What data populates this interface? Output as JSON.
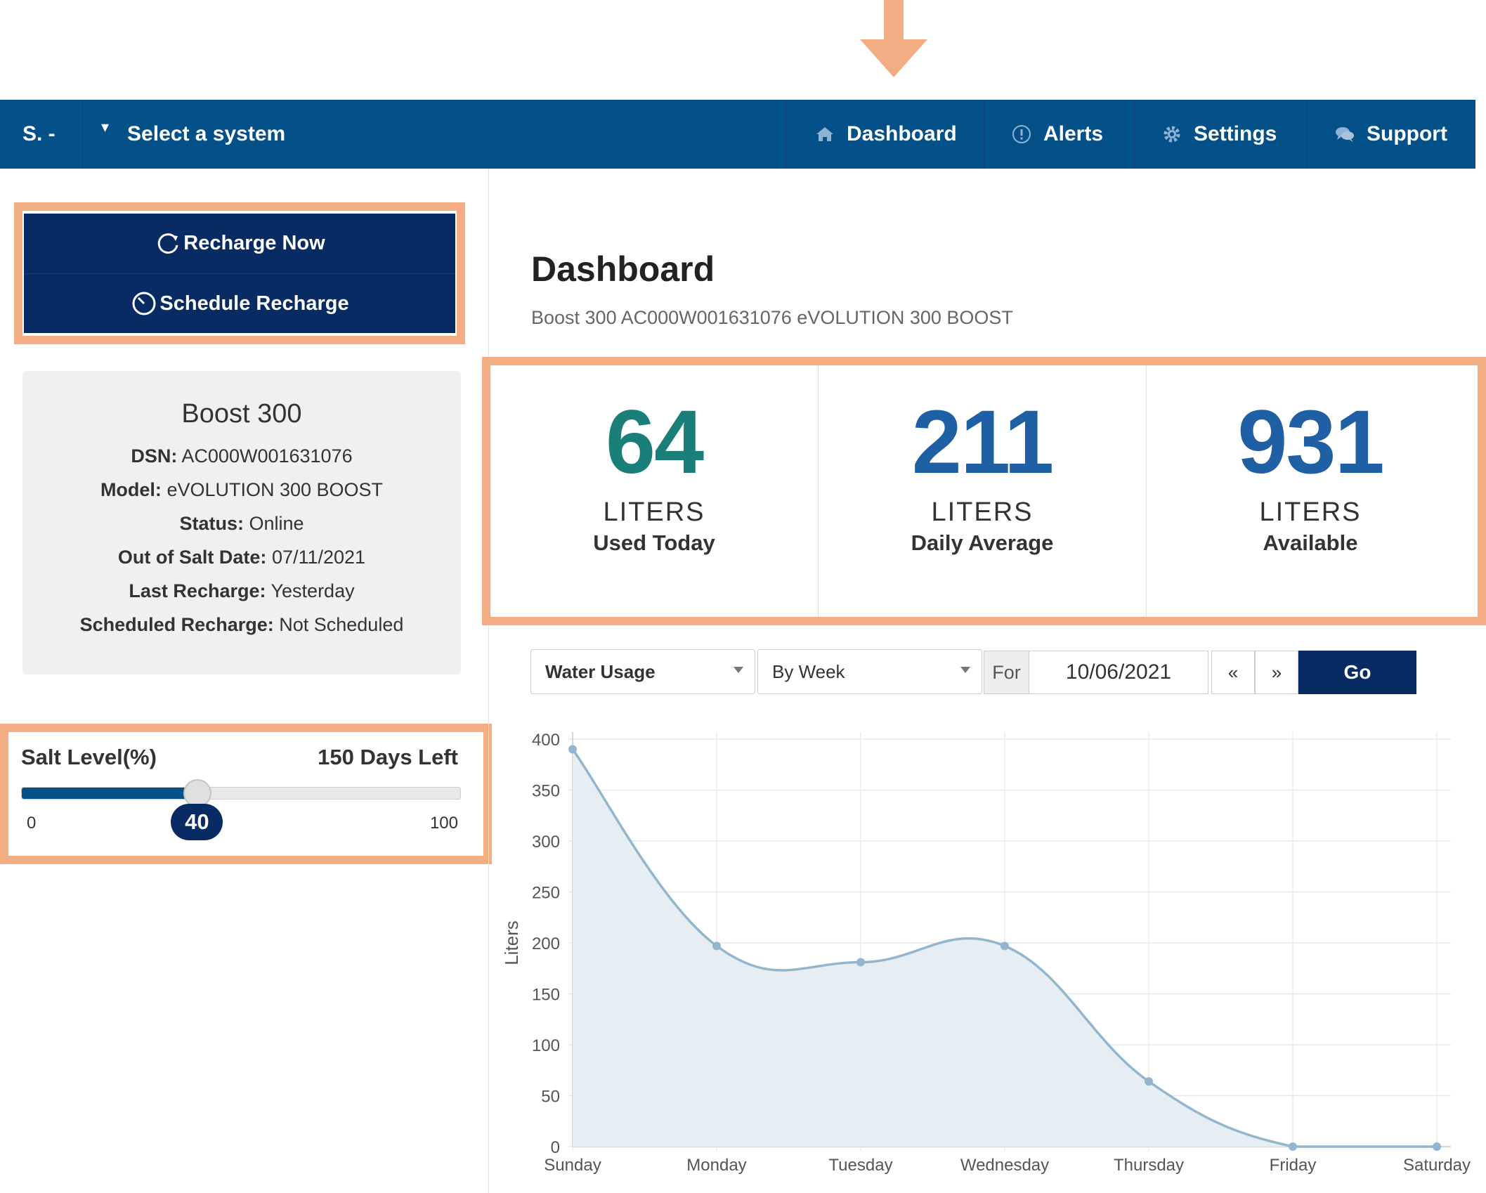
{
  "navbar": {
    "brand": "S. -",
    "system_select": "Select a system",
    "items": [
      {
        "label": "Dashboard",
        "icon": "home-icon"
      },
      {
        "label": "Alerts",
        "icon": "alert-circle-icon"
      },
      {
        "label": "Settings",
        "icon": "gear-icon"
      },
      {
        "label": "Support",
        "icon": "chat-bubbles-icon"
      }
    ]
  },
  "actions": {
    "recharge_now": "Recharge Now",
    "schedule_recharge": "Schedule Recharge"
  },
  "system_info": {
    "title": "Boost 300",
    "dsn_label": "DSN:",
    "dsn": "AC000W001631076",
    "model_label": "Model:",
    "model": "eVOLUTION 300 BOOST",
    "status_label": "Status:",
    "status": "Online",
    "out_of_salt_label": "Out of Salt Date:",
    "out_of_salt": "07/11/2021",
    "last_recharge_label": "Last Recharge:",
    "last_recharge": "Yesterday",
    "scheduled_recharge_label": "Scheduled Recharge:",
    "scheduled_recharge": "Not Scheduled"
  },
  "salt": {
    "label": "Salt Level(%)",
    "days_left": "150 Days Left",
    "min": "0",
    "max": "100",
    "value": 40,
    "value_text": "40"
  },
  "page": {
    "title": "Dashboard",
    "subtitle": "Boost 300 AC000W001631076 eVOLUTION 300 BOOST"
  },
  "stats": [
    {
      "value": "64",
      "unit": "LITERS",
      "label": "Used Today",
      "color": "#1a7f78"
    },
    {
      "value": "211",
      "unit": "LITERS",
      "label": "Daily Average",
      "color": "#1f5fa3"
    },
    {
      "value": "931",
      "unit": "LITERS",
      "label": "Available",
      "color": "#1f5fa3"
    }
  ],
  "controls": {
    "metric": "Water Usage",
    "period": "By Week",
    "for_label": "For",
    "date": "10/06/2021",
    "prev": "«",
    "next": "»",
    "go": "Go"
  },
  "colors": {
    "navbar": "#04518a",
    "dark_button": "#082b63",
    "highlight": "#f2ad82",
    "line": "#94b6cc",
    "area": "#e6eef4"
  },
  "chart_data": {
    "type": "area",
    "categories": [
      "Sunday",
      "Monday",
      "Tuesday",
      "Wednesday",
      "Thursday",
      "Friday",
      "Saturday"
    ],
    "values": [
      390,
      197,
      181,
      197,
      64,
      0,
      0
    ],
    "ylabel": "Liters",
    "xlabel": "",
    "ylim": [
      0,
      400
    ],
    "yticks": [
      0,
      50,
      100,
      150,
      200,
      250,
      300,
      350,
      400
    ],
    "grid": true,
    "smooth": true
  }
}
